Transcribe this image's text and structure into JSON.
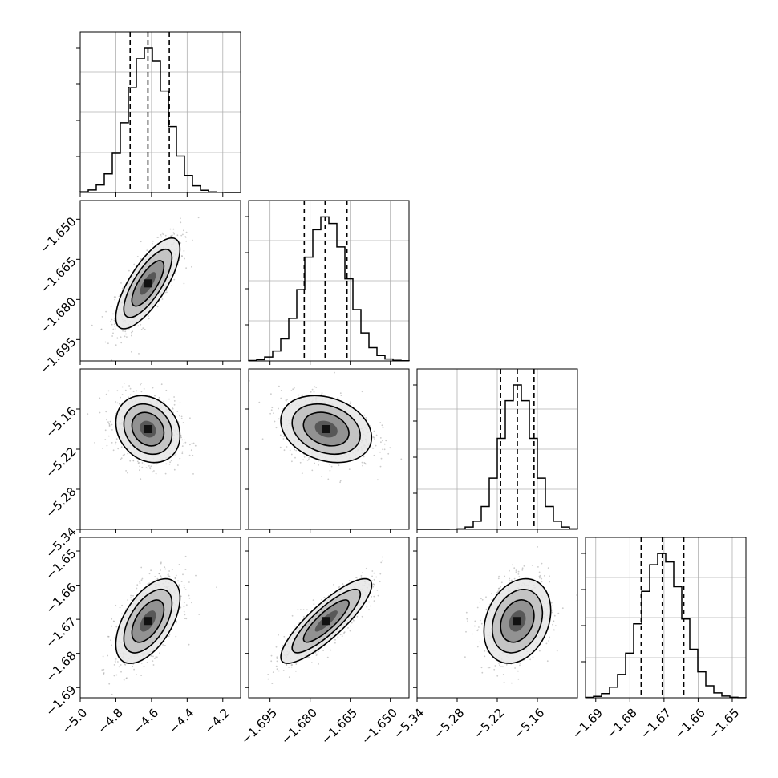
{
  "chart_data": {
    "type": "corner",
    "parameters": [
      {
        "range": [
          -5.0,
          -4.1
        ],
        "ticks": [
          -5.0,
          -4.8,
          -4.6,
          -4.4,
          -4.2
        ],
        "tick_labels": [
          "−5.0",
          "−4.8",
          "−4.6",
          "−4.4",
          "−4.2"
        ],
        "median": -4.62,
        "quantiles": [
          -4.72,
          -4.62,
          -4.5
        ]
      },
      {
        "range": [
          -1.703,
          -1.643
        ],
        "ticks": [
          -1.695,
          -1.68,
          -1.665,
          -1.65
        ],
        "tick_labels": [
          "−1.695",
          "−1.680",
          "−1.665",
          "−1.650"
        ],
        "median": -1.674,
        "quantiles": [
          -1.6822,
          -1.6744,
          -1.6662
        ]
      },
      {
        "range": [
          -5.34,
          -5.1
        ],
        "ticks": [
          -5.34,
          -5.28,
          -5.22,
          -5.16
        ],
        "tick_labels": [
          "−5.34",
          "−5.28",
          "−5.22",
          "−5.16"
        ],
        "median": -5.19,
        "quantiles": [
          -5.215,
          -5.19,
          -5.165
        ]
      },
      {
        "range": [
          -1.693,
          -1.646
        ],
        "ticks": [
          -1.69,
          -1.68,
          -1.67,
          -1.66,
          -1.65
        ],
        "tick_labels": [
          "−1.69",
          "−1.68",
          "−1.67",
          "−1.66",
          "−1.65"
        ],
        "median": -1.6705,
        "quantiles": [
          -1.6767,
          -1.6705,
          -1.6642
        ]
      }
    ],
    "pairs": [
      {
        "x": 0,
        "y": 1,
        "mean": [
          -4.62,
          -1.674
        ],
        "sd": [
          0.09,
          0.0085
        ],
        "corr": 0.75
      },
      {
        "x": 0,
        "y": 2,
        "mean": [
          -4.62,
          -5.19
        ],
        "sd": [
          0.09,
          0.025
        ],
        "corr": -0.2
      },
      {
        "x": 1,
        "y": 2,
        "mean": [
          -1.674,
          -5.19
        ],
        "sd": [
          0.0085,
          0.025
        ],
        "corr": -0.25
      },
      {
        "x": 0,
        "y": 3,
        "mean": [
          -4.62,
          -1.6705
        ],
        "sd": [
          0.09,
          0.0062
        ],
        "corr": 0.55
      },
      {
        "x": 1,
        "y": 3,
        "mean": [
          -1.674,
          -1.6705
        ],
        "sd": [
          0.0085,
          0.0062
        ],
        "corr": 0.85
      },
      {
        "x": 2,
        "y": 3,
        "mean": [
          -5.19,
          -1.6705
        ],
        "sd": [
          0.025,
          0.0062
        ],
        "corr": 0.25
      }
    ],
    "grid": true,
    "colors": {
      "axes": "#000000",
      "grid": "#b0b0b0",
      "points": "#8c8c8c",
      "hist": "#000000"
    }
  }
}
